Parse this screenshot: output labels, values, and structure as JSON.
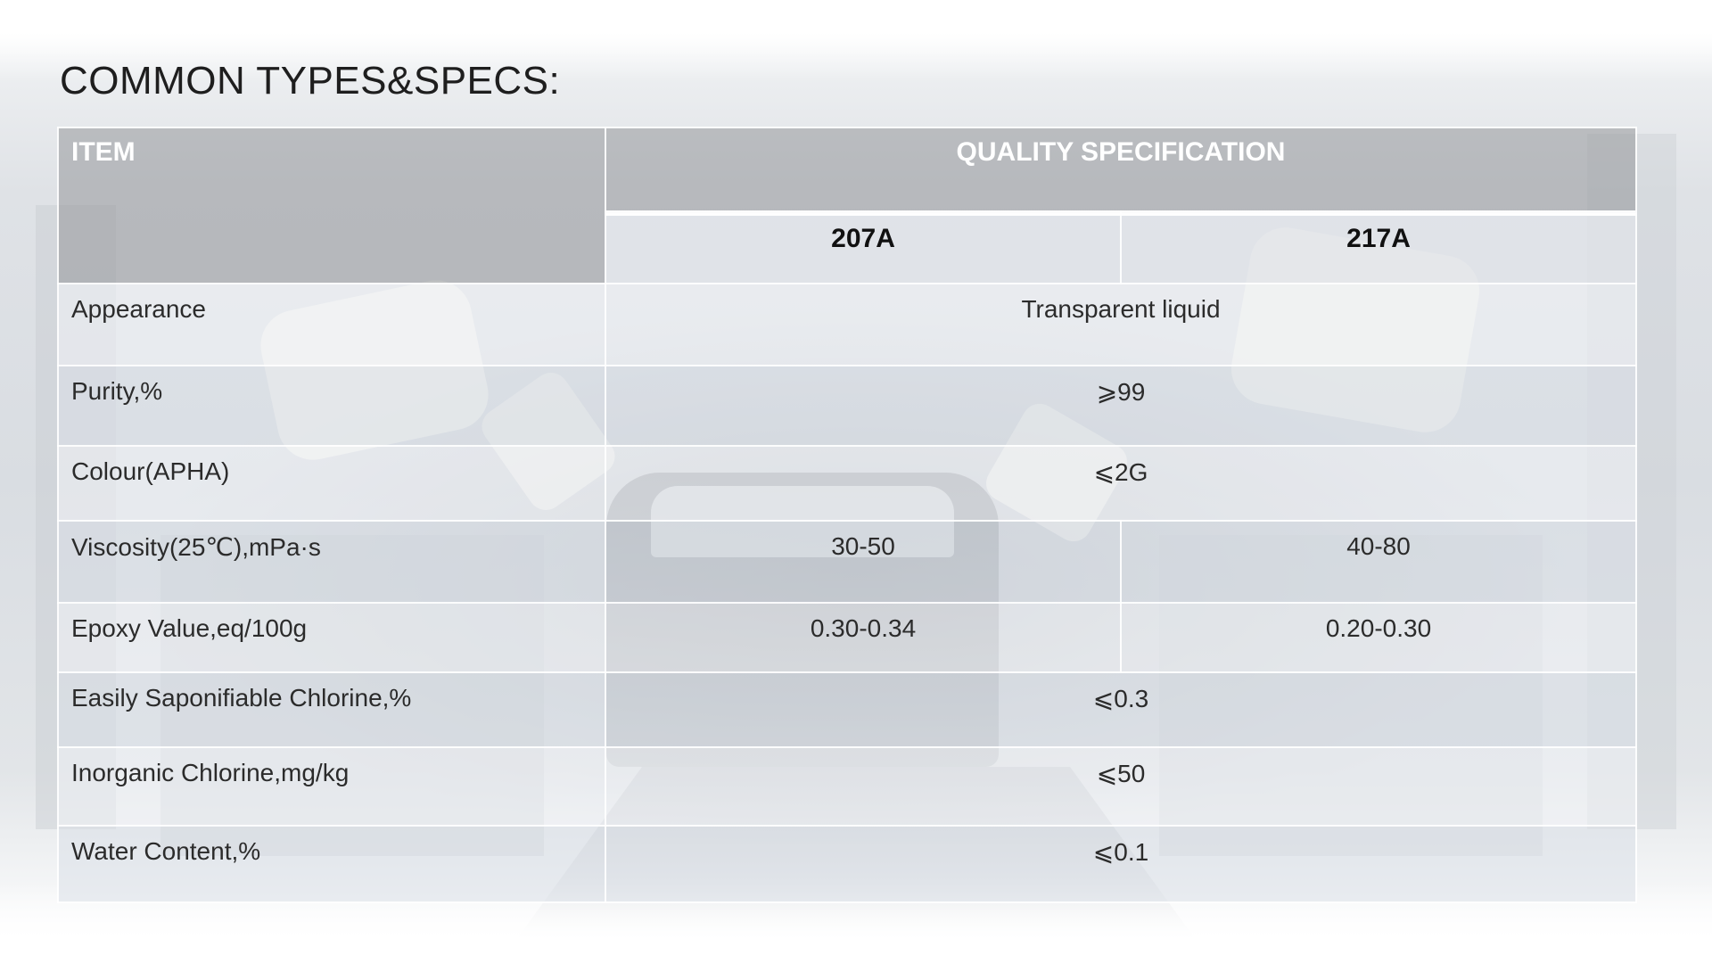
{
  "title": "COMMON TYPES&SPECS:",
  "table": {
    "header": {
      "item": "ITEM",
      "quality_specification": "QUALITY SPECIFICATION",
      "grades": [
        "207A",
        "217A"
      ]
    },
    "rows": [
      {
        "item": "Appearance",
        "value": "Transparent liquid"
      },
      {
        "item": "Purity,%",
        "value": "⩾99"
      },
      {
        "item": "Colour(APHA)",
        "value": "⩽2G"
      },
      {
        "item": "Viscosity(25℃),mPa·s",
        "value_207A": "30-50",
        "value_217A": "40-80"
      },
      {
        "item": "Epoxy Value,eq/100g",
        "value_207A": "0.30-0.34",
        "value_217A": "0.20-0.30"
      },
      {
        "item": "Easily Saponifiable Chlorine,%",
        "value": "⩽0.3"
      },
      {
        "item": "Inorganic Chlorine,mg/kg",
        "value": "⩽50"
      },
      {
        "item": "Water Content,%",
        "value": "⩽0.1"
      }
    ]
  },
  "colors": {
    "header_bg": "#96989b",
    "header_text": "#ffffff",
    "body_text": "#2b2b2b"
  }
}
